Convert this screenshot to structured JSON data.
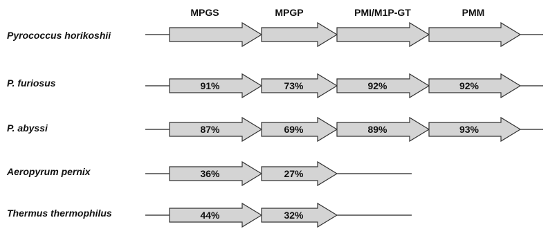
{
  "gene_headers": [
    "MPGS",
    "MPGP",
    "PMI/M1P-GT",
    "PMM"
  ],
  "organisms": [
    {
      "name": "Pyrococcus horikoshii",
      "identities": [
        "",
        "",
        "",
        ""
      ]
    },
    {
      "name": "P. furiosus",
      "identities": [
        "91%",
        "73%",
        "92%",
        "92%"
      ]
    },
    {
      "name": "P. abyssi",
      "identities": [
        "87%",
        "69%",
        "89%",
        "93%"
      ]
    },
    {
      "name": "Aeropyrum pernix",
      "identities": [
        "36%",
        "27%"
      ]
    },
    {
      "name": "Thermus thermophilus",
      "identities": [
        "44%",
        "32%"
      ]
    }
  ],
  "colors": {
    "arrow_fill": "#d4d4d4",
    "arrow_stroke": "#333333",
    "line": "#222222",
    "text": "#111111"
  }
}
